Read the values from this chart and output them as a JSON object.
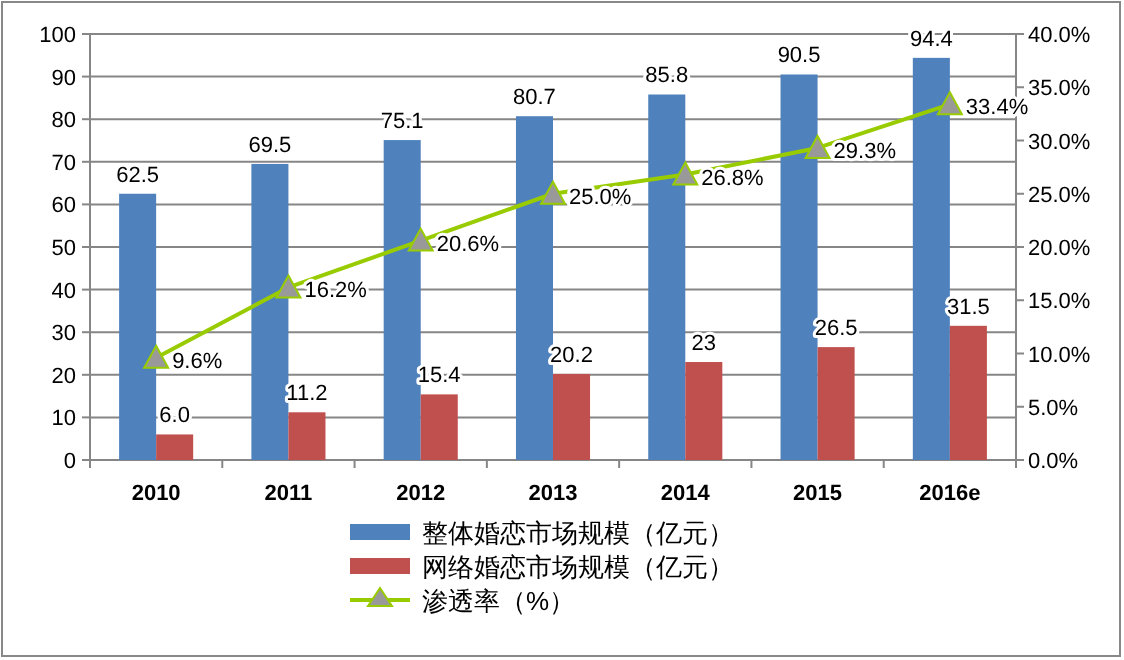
{
  "chart_data": {
    "type": "bar",
    "categories": [
      "2010",
      "2011",
      "2012",
      "2013",
      "2014",
      "2015",
      "2016e"
    ],
    "series": [
      {
        "name": "整体婚恋市场规模（亿元）",
        "color": "#4f81bd",
        "values": [
          62.5,
          69.5,
          75.1,
          80.7,
          85.8,
          90.5,
          94.4
        ],
        "value_labels": [
          "62.5",
          "69.5",
          "75.1",
          "80.7",
          "85.8",
          "90.5",
          "94.4"
        ]
      },
      {
        "name": "网络婚恋市场规模（亿元）",
        "color": "#c0504d",
        "values": [
          6.0,
          11.2,
          15.4,
          20.2,
          23,
          26.5,
          31.5
        ],
        "value_labels": [
          "6.0",
          "11.2",
          "15.4",
          "20.2",
          "23",
          "26.5",
          "31.5"
        ]
      },
      {
        "name": "渗透率（%）",
        "type": "line",
        "axis": "y2",
        "color": "#99cc00",
        "marker": "triangle",
        "values": [
          9.6,
          16.2,
          20.6,
          25.0,
          26.8,
          29.3,
          33.4
        ],
        "value_labels": [
          "9.6%",
          "16.2%",
          "20.6%",
          "25.0%",
          "26.8%",
          "29.3%",
          "33.4%"
        ]
      }
    ],
    "ylim": [
      0,
      100
    ],
    "yticks": [
      0,
      10,
      20,
      30,
      40,
      50,
      60,
      70,
      80,
      90,
      100
    ],
    "y2lim": [
      0,
      40
    ],
    "y2ticks": [
      {
        "value": 0,
        "label": "0.0%"
      },
      {
        "value": 5,
        "label": "5.0%"
      },
      {
        "value": 10,
        "label": "10.0%"
      },
      {
        "value": 15,
        "label": "15.0%"
      },
      {
        "value": 20,
        "label": "20.0%"
      },
      {
        "value": 25,
        "label": "25.0%"
      },
      {
        "value": 30,
        "label": "30.0%"
      },
      {
        "value": 35,
        "label": "35.0%"
      },
      {
        "value": 40,
        "label": "40.0%"
      }
    ],
    "grid": "y",
    "legend": "bottom"
  }
}
